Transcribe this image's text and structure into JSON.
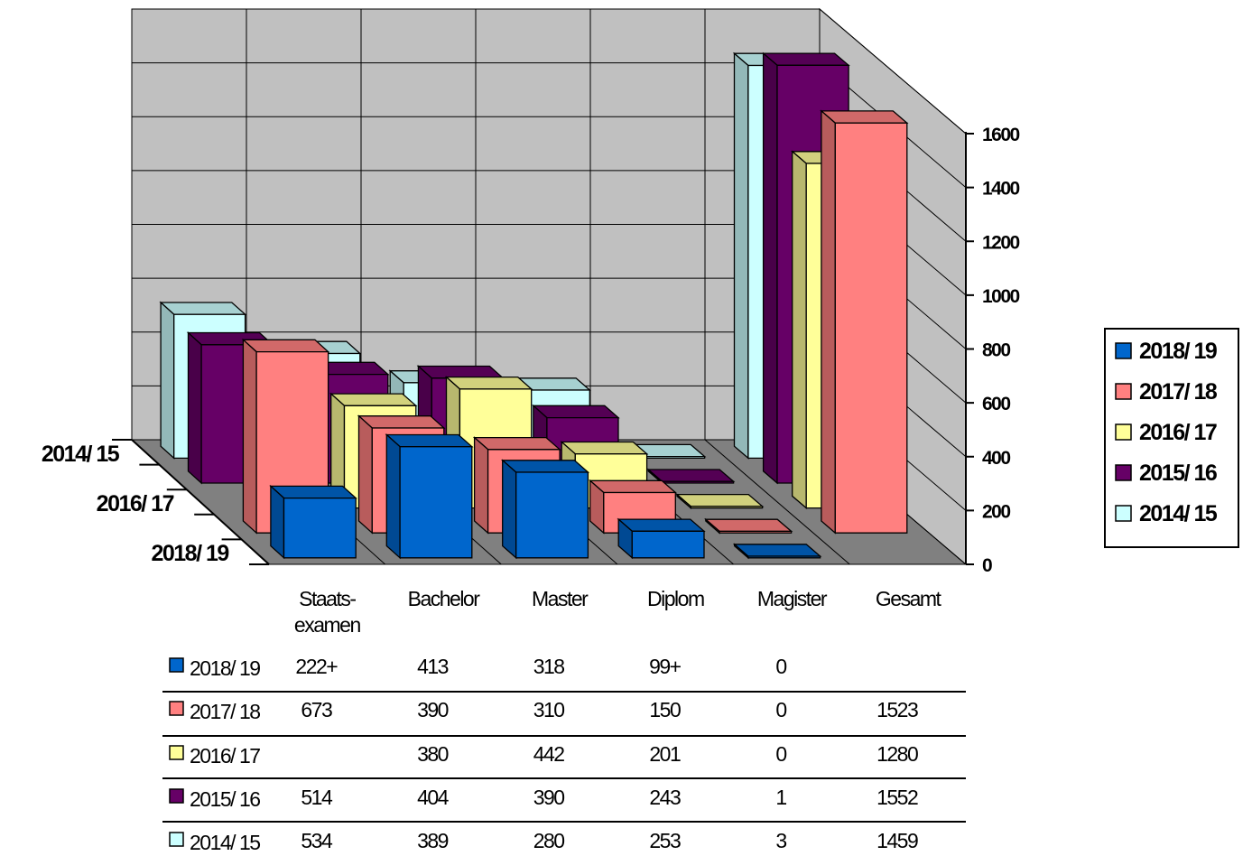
{
  "chart_data": {
    "type": "bar",
    "subtype": "3d-column-with-depth-series-and-data-table",
    "categories": [
      "Staats-\nexamen",
      "Bachelor",
      "Master",
      "Diplom",
      "Magister",
      "Gesamt"
    ],
    "depth_axis_labels": [
      "2014/ 15",
      "2016/ 17",
      "2018/ 19"
    ],
    "ylim": [
      0,
      1600
    ],
    "yticks": [
      "0",
      "200",
      "400",
      "600",
      "800",
      "1000",
      "1200",
      "1400",
      "1600"
    ],
    "grid": true,
    "legend_position": "right",
    "series": [
      {
        "name": "2018/ 19",
        "color": "#0066cc",
        "values": [
          222,
          413,
          318,
          99,
          0,
          null
        ],
        "labels": [
          "222+",
          "413",
          "318",
          "99+",
          "0",
          ""
        ]
      },
      {
        "name": "2017/ 18",
        "color": "#ff8080",
        "values": [
          673,
          390,
          310,
          150,
          0,
          1523
        ],
        "labels": [
          "673",
          "390",
          "310",
          "150",
          "0",
          "1523"
        ]
      },
      {
        "name": "2016/ 17",
        "color": "#ffff99",
        "values": [
          null,
          380,
          442,
          201,
          0,
          1280
        ],
        "labels": [
          "",
          "380",
          "442",
          "201",
          "0",
          "1280"
        ]
      },
      {
        "name": "2015/ 16",
        "color": "#660066",
        "values": [
          514,
          404,
          390,
          243,
          1,
          1552
        ],
        "labels": [
          "514",
          "404",
          "390",
          "243",
          "1",
          "1552"
        ]
      },
      {
        "name": "2014/ 15",
        "color": "#ccffff",
        "values": [
          534,
          389,
          280,
          253,
          3,
          1459
        ],
        "labels": [
          "534",
          "389",
          "280",
          "253",
          "3",
          "1459"
        ]
      }
    ]
  }
}
